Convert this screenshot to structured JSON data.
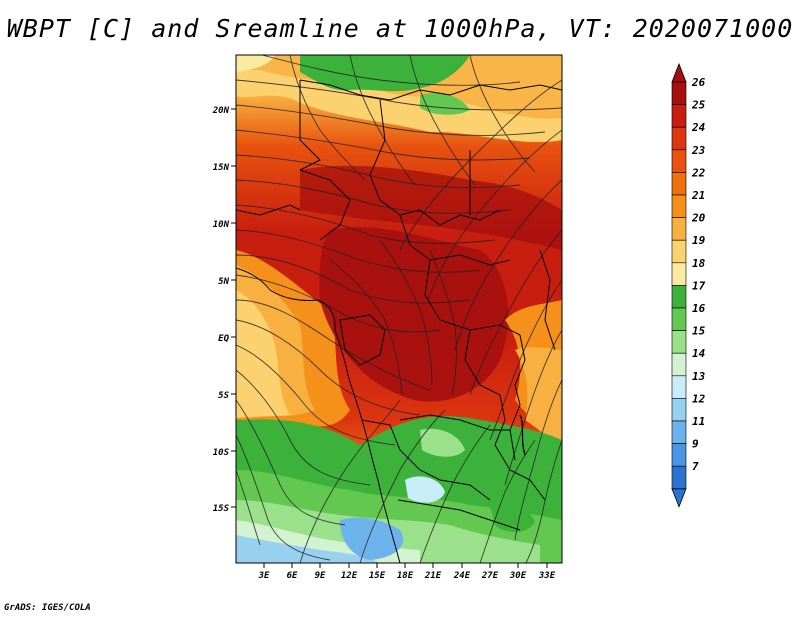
{
  "title": "WBPT [C] and Sreamline at 1000hPa, VT: 2020071000",
  "credit": "GrADS: IGES/COLA",
  "map": {
    "lat_ticks": [
      "20N",
      "15N",
      "10N",
      "5N",
      "EQ",
      "5S",
      "10S",
      "15S"
    ],
    "lon_ticks": [
      "3E",
      "6E",
      "9E",
      "12E",
      "15E",
      "18E",
      "21E",
      "24E",
      "27E",
      "30E",
      "33E"
    ]
  },
  "colorbar": {
    "labels": [
      "26",
      "25",
      "24",
      "23",
      "22",
      "21",
      "20",
      "19",
      "18",
      "17",
      "16",
      "15",
      "14",
      "13",
      "12",
      "11",
      "9",
      "7"
    ],
    "colors": [
      "#a50f0f",
      "#c81e0f",
      "#dc3510",
      "#e8520f",
      "#f07010",
      "#f5901a",
      "#f8b040",
      "#fcd270",
      "#fbeaa2",
      "#3db23b",
      "#63c850",
      "#9be08a",
      "#d2f2d0",
      "#c8ecf8",
      "#98d0f0",
      "#6cb3ec",
      "#4896e4",
      "#2c72d0"
    ]
  }
}
